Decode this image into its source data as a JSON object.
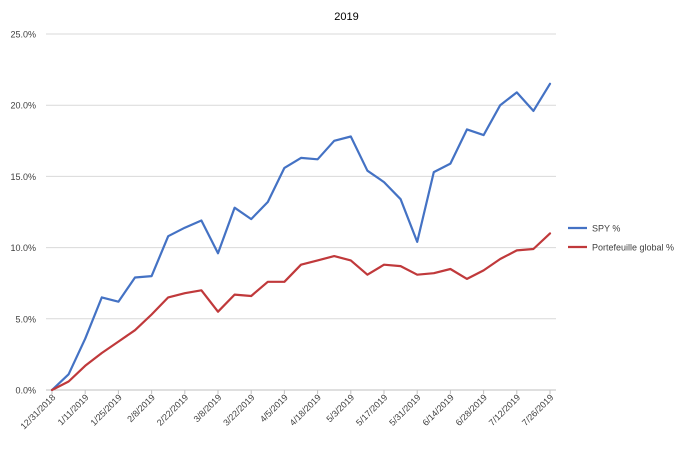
{
  "chart_data": {
    "type": "line",
    "title": "2019",
    "xlabel": "",
    "ylabel": "",
    "ylim": [
      0,
      25
    ],
    "y_ticks": [
      "0.0%",
      "5.0%",
      "10.0%",
      "15.0%",
      "20.0%",
      "25.0%"
    ],
    "y_tick_values": [
      0,
      5,
      10,
      15,
      20,
      25
    ],
    "x": [
      "12/31/2018",
      "1/4/2019",
      "1/11/2019",
      "1/18/2019",
      "1/25/2019",
      "2/1/2019",
      "2/8/2019",
      "2/15/2019",
      "2/22/2019",
      "3/1/2019",
      "3/8/2019",
      "3/15/2019",
      "3/22/2019",
      "3/29/2019",
      "4/5/2019",
      "4/12/2019",
      "4/18/2019",
      "4/26/2019",
      "5/3/2019",
      "5/10/2019",
      "5/17/2019",
      "5/24/2019",
      "5/31/2019",
      "6/7/2019",
      "6/14/2019",
      "6/21/2019",
      "6/28/2019",
      "7/5/2019",
      "7/12/2019",
      "7/19/2019",
      "7/26/2019"
    ],
    "x_tick_labels": [
      "12/31/2018",
      "1/11/2019",
      "1/25/2019",
      "2/8/2019",
      "2/22/2019",
      "3/8/2019",
      "3/22/2019",
      "4/5/2019",
      "4/18/2019",
      "5/3/2019",
      "5/17/2019",
      "5/31/2019",
      "6/14/2019",
      "6/28/2019",
      "7/12/2019",
      "7/26/2019"
    ],
    "legend_position": "right",
    "grid": "horizontal",
    "series": [
      {
        "name": "SPY %",
        "color": "#4472c4",
        "values": [
          0.0,
          1.1,
          3.6,
          6.5,
          6.2,
          7.9,
          8.0,
          10.8,
          11.4,
          11.9,
          9.6,
          12.8,
          12.0,
          13.2,
          15.6,
          16.3,
          16.2,
          17.5,
          17.8,
          15.4,
          14.6,
          13.4,
          10.4,
          15.3,
          15.9,
          18.3,
          17.9,
          20.0,
          20.9,
          19.6,
          21.5
        ]
      },
      {
        "name": "Portefeuille global %",
        "color": "#c0393b",
        "values": [
          0.0,
          0.6,
          1.7,
          2.6,
          3.4,
          4.2,
          5.3,
          6.5,
          6.8,
          7.0,
          5.5,
          6.7,
          6.6,
          7.6,
          7.6,
          8.8,
          9.1,
          9.4,
          9.1,
          8.1,
          8.8,
          8.7,
          8.1,
          8.2,
          8.5,
          7.8,
          8.4,
          9.2,
          9.8,
          9.9,
          11.0
        ]
      }
    ]
  }
}
